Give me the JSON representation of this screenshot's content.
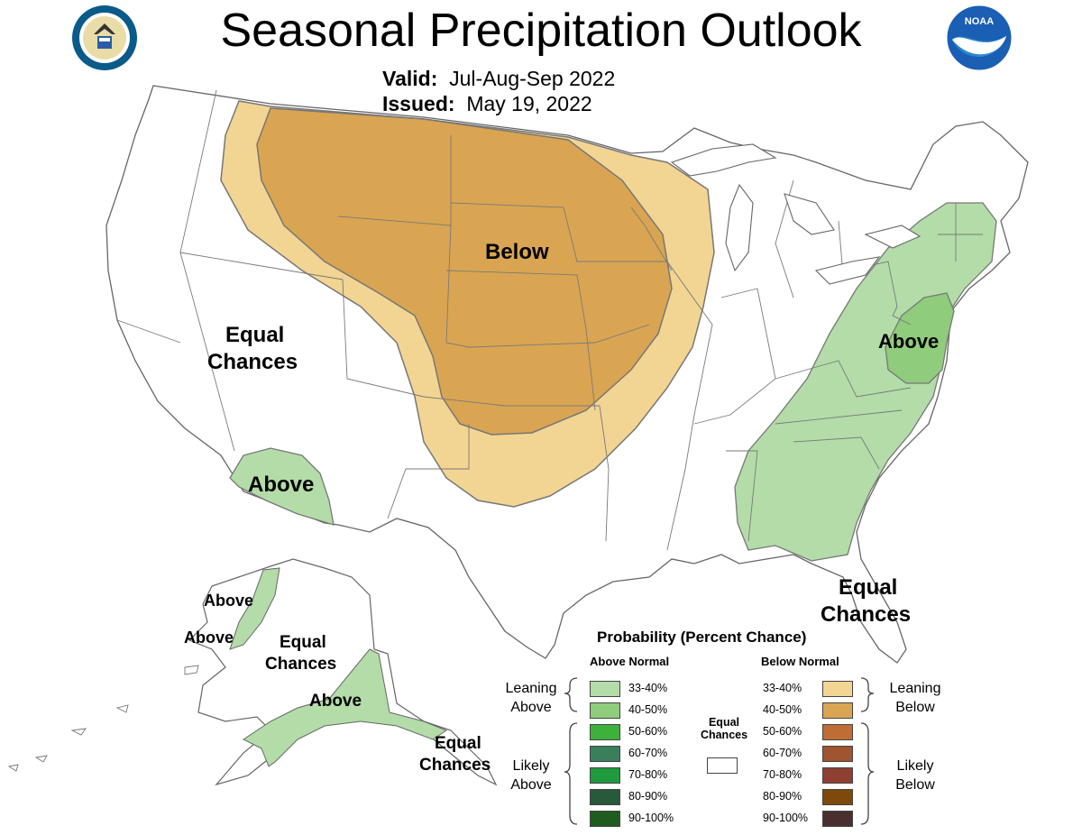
{
  "title": "Seasonal Precipitation Outlook",
  "valid": {
    "label": "Valid:",
    "value": "Jul-Aug-Sep 2022"
  },
  "issued": {
    "label": "Issued:",
    "value": "May 19, 2022"
  },
  "logos": {
    "noaa_text": "NOAA",
    "doc_seal": "department-of-commerce-seal"
  },
  "map_labels": {
    "below_center": "Below",
    "equal_west_1": "Equal",
    "equal_west_2": "Chances",
    "above_southwest": "Above",
    "above_east": "Above",
    "equal_southeast_1": "Equal",
    "equal_southeast_2": "Chances",
    "ak_above_1": "Above",
    "ak_above_2": "Above",
    "ak_equal_1": "Equal",
    "ak_equal_2": "Chances",
    "ak_above_3": "Above",
    "ak_equal_se_1": "Equal",
    "ak_equal_se_2": "Chances"
  },
  "legend": {
    "title": "Probability (Percent Chance)",
    "above_header": "Above Normal",
    "below_header": "Below Normal",
    "leaning_above_1": "Leaning",
    "leaning_above_2": "Above",
    "likely_above_1": "Likely",
    "likely_above_2": "Above",
    "leaning_below_1": "Leaning",
    "leaning_below_2": "Below",
    "likely_below_1": "Likely",
    "likely_below_2": "Below",
    "equal_1": "Equal",
    "equal_2": "Chances",
    "ranges": [
      "33-40%",
      "40-50%",
      "50-60%",
      "60-70%",
      "70-80%",
      "80-90%",
      "90-100%"
    ],
    "above_colors": [
      "#b3dca8",
      "#8fcc7c",
      "#3eb13c",
      "#3a7f5c",
      "#1f9a3d",
      "#275a3a",
      "#1e5d1d"
    ],
    "below_colors": [
      "#f2d592",
      "#d9a552",
      "#c06c35",
      "#a0542f",
      "#904033",
      "#7d4a0b",
      "#4a2f2f"
    ],
    "equal_color": "#ffffff"
  },
  "colors": {
    "leaning_below": "#f2d592",
    "below_40_50": "#d9a552",
    "leaning_above": "#b3dca8",
    "above_40_50": "#8fcc7c",
    "border": "#7a7a7a"
  }
}
